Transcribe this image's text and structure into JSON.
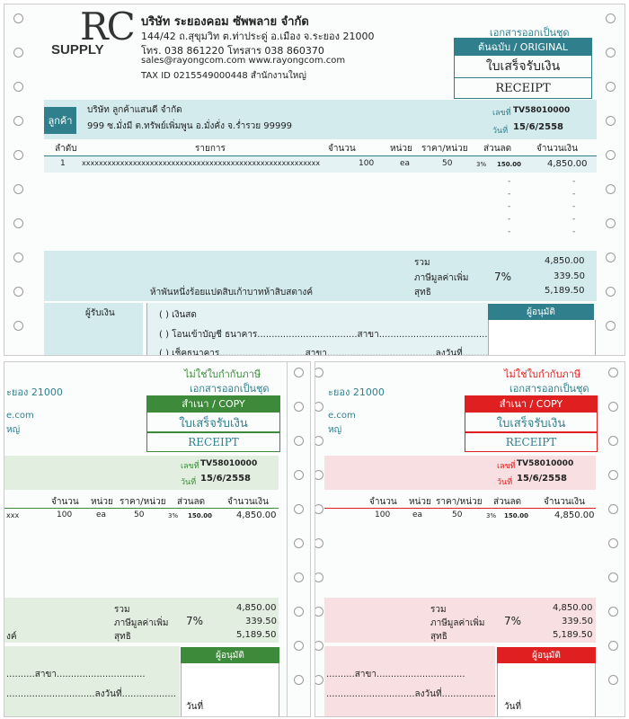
{
  "colors": {
    "teal": "#2f7f8c",
    "teal_light": "#d4ebee",
    "green": "#3d8a3a",
    "green_light": "#e2efe0",
    "red": "#e02020",
    "red_light": "#f8dfe2",
    "border": "#999999"
  },
  "original": {
    "logo_top": "RC",
    "logo_bottom": "SUPPLY",
    "company_name": "บริษัท ระยองคอม ซัพพลาย จำกัด",
    "address": "144/42 ถ.สุขุมวิท ต.ท่าประดู่ อ.เมือง จ.ระยอง 21000",
    "phone": "โทร. 038 861220 โทรสาร 038 860370",
    "web": "sales@rayongcom.com   www.rayongcom.com",
    "tax": "TAX ID  0215549000448          สำนักงานใหญ่",
    "set_doc": "เอกสารออกเป็นชุด",
    "copy_label": "ต้นฉบับ  / ORIGINAL",
    "doc_title_th": "ใบเสร็จรับเงิน",
    "doc_title_en": "RECEIPT",
    "customer_label": "ลูกค้า",
    "customer_name": "บริษัท ลูกค้าแสนดี จำกัด",
    "customer_address": "999 ซ.มั่งมี ต.ทรัพย์เพิ่มพูน อ.มั่งคั่ง จ.ร่ำรวย 99999",
    "no_label": "เลขที่",
    "no_value": "TV58010000",
    "date_label": "วันที่",
    "date_value": "15/6/2558",
    "headers": {
      "no": "ลำดับ",
      "item": "รายการ",
      "qty": "จำนวน",
      "unit": "หน่วย",
      "price": "ราคา/หน่วย",
      "discount": "ส่วนลด",
      "amount": "จำนวนเงิน"
    },
    "row": {
      "no": "1",
      "item": "xxxxxxxxxxxxxxxxxxxxxxxxxxxxxxxxxxxxxxxxxxxxxxxxxxxxxxxx",
      "qty": "100",
      "unit": "ea",
      "price": "50",
      "disc_pct": "3%",
      "disc_amt": "150.00",
      "amount": "4,850.00"
    },
    "total_label": "รวม",
    "total_value": "4,850.00",
    "vat_label": "ภาษีมูลค่าเพิ่ม",
    "vat_rate": "7%",
    "vat_value": "339.50",
    "net_label": "สุทธิ",
    "net_value": "5,189.50",
    "amount_words": "ห้าพันหนึ่งร้อยแปดสิบเก้าบาทห้าสิบสตางค์",
    "payer_label": "ผู้รับเงิน",
    "pay_cash": "(    ) เงินสด",
    "pay_transfer": "(    ) โอนเข้าบัญชี   ธนาคาร...................................สาขา..........................................",
    "pay_cheque": "(    ) เช็คธนาคาร..............................สาขา......................................ลงวันที่..................",
    "approver_label": "ผู้อนุมัติ"
  },
  "copy_green": {
    "not_tax": "ไม่ใช่ใบกำกับภาษี",
    "set_doc": "เอกสารออกเป็นชุด",
    "frag_zip": "ะยอง 21000",
    "frag_web": "e.com",
    "frag_hq": "หญ่",
    "copy_label": "สำเนา / COPY",
    "doc_title_th": "ใบเสร็จรับเงิน",
    "doc_title_en": "RECEIPT",
    "no_label": "เลขที่",
    "no_value": "TV58010000",
    "date_label": "วันที่",
    "date_value": "15/6/2558",
    "headers": {
      "qty": "จำนวน",
      "unit": "หน่วย",
      "price": "ราคา/หน่วย",
      "discount": "ส่วนลด",
      "amount": "จำนวนเงิน"
    },
    "row": {
      "item": "xxx",
      "qty": "100",
      "unit": "ea",
      "price": "50",
      "disc_pct": "3%",
      "disc_amt": "150.00",
      "amount": "4,850.00"
    },
    "total_label": "รวม",
    "total_value": "4,850.00",
    "vat_label": "ภาษีมูลค่าเพิ่ม",
    "vat_rate": "7%",
    "vat_value": "339.50",
    "net_label": "สุทธิ",
    "net_value": "5,189.50",
    "words_frag": "งค์",
    "branch_frag": "..........สาขา...............................",
    "dated_frag": "...............................ลงวันที่...................",
    "approver_label": "ผู้อนุมัติ",
    "sign_date": "วันที่"
  },
  "copy_red": {
    "not_tax": "ไม่ใช่ใบกำกับภาษี",
    "set_doc": "เอกสารออกเป็นชุด",
    "frag_zip": "ะยอง 21000",
    "frag_web": "e.com",
    "frag_hq": "หญ่",
    "copy_label": "สำเนา / COPY",
    "doc_title_th": "ใบเสร็จรับเงิน",
    "doc_title_en": "RECEIPT",
    "no_label": "เลขที่",
    "no_value": "TV58010000",
    "date_label": "วันที่",
    "date_value": "15/6/2558",
    "headers": {
      "qty": "จำนวน",
      "unit": "หน่วย",
      "price": "ราคา/หน่วย",
      "discount": "ส่วนลด",
      "amount": "จำนวนเงิน"
    },
    "row": {
      "qty": "100",
      "unit": "ea",
      "price": "50",
      "disc_pct": "3%",
      "disc_amt": "150.00",
      "amount": "4,850.00"
    },
    "total_label": "รวม",
    "total_value": "4,850.00",
    "vat_label": "ภาษีมูลค่าเพิ่ม",
    "vat_rate": "7%",
    "vat_value": "339.50",
    "net_label": "สุทธิ",
    "net_value": "5,189.50",
    "branch_frag": "..........สาขา...............................",
    "dated_frag": "...............................ลงวันที่...................",
    "approver_label": "ผู้อนุมัติ",
    "sign_date": "วันที่"
  }
}
